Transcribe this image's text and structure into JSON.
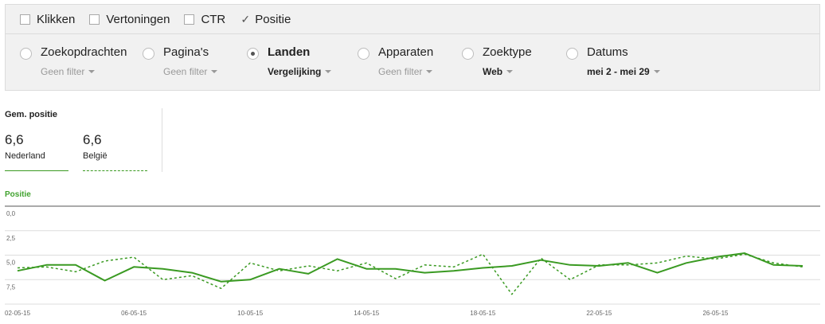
{
  "metrics": [
    {
      "label": "Klikken",
      "checked": false
    },
    {
      "label": "Vertoningen",
      "checked": false
    },
    {
      "label": "CTR",
      "checked": false
    },
    {
      "label": "Positie",
      "checked": true
    }
  ],
  "dimensions": [
    {
      "label": "Zoekopdrachten",
      "filter": "Geen filter",
      "selected": false,
      "active_filter": false
    },
    {
      "label": "Pagina's",
      "filter": "Geen filter",
      "selected": false,
      "active_filter": false
    },
    {
      "label": "Landen",
      "filter": "Vergelijking",
      "selected": true,
      "active_filter": true
    },
    {
      "label": "Apparaten",
      "filter": "Geen filter",
      "selected": false,
      "active_filter": false
    },
    {
      "label": "Zoektype",
      "filter": "Web",
      "selected": false,
      "active_filter": true
    },
    {
      "label": "Datums",
      "filter": "mei 2 - mei 29",
      "selected": false,
      "active_filter": true
    }
  ],
  "scorecards": {
    "title": "Gem. positie",
    "items": [
      {
        "value": "6,6",
        "label": "Nederland",
        "line_style": "solid"
      },
      {
        "value": "6,6",
        "label": "België",
        "line_style": "dashed"
      }
    ]
  },
  "colors": {
    "series": "#3a9a22",
    "grid": "#dddddd",
    "axis": "#555555"
  },
  "chart_data": {
    "type": "line",
    "title": "Positie",
    "y_reversed": true,
    "ylim": [
      0,
      10
    ],
    "yticks": [
      "0,0",
      "2,5",
      "5,0",
      "7,5"
    ],
    "ytick_values": [
      0,
      2.5,
      5,
      7.5
    ],
    "x": [
      "02-05-15",
      "03-05-15",
      "04-05-15",
      "05-05-15",
      "06-05-15",
      "07-05-15",
      "08-05-15",
      "09-05-15",
      "10-05-15",
      "11-05-15",
      "12-05-15",
      "13-05-15",
      "14-05-15",
      "15-05-15",
      "16-05-15",
      "17-05-15",
      "18-05-15",
      "19-05-15",
      "20-05-15",
      "21-05-15",
      "22-05-15",
      "23-05-15",
      "24-05-15",
      "25-05-15",
      "26-05-15",
      "27-05-15",
      "28-05-15",
      "29-05-15"
    ],
    "xtick_labels": [
      "02-05-15",
      "06-05-15",
      "10-05-15",
      "14-05-15",
      "18-05-15",
      "22-05-15",
      "26-05-15"
    ],
    "xtick_indices": [
      0,
      4,
      8,
      12,
      16,
      20,
      24
    ],
    "series": [
      {
        "name": "Nederland",
        "style": "solid",
        "values": [
          6.6,
          6.0,
          6.0,
          7.6,
          6.2,
          6.4,
          6.8,
          7.7,
          7.5,
          6.4,
          6.9,
          5.4,
          6.4,
          6.4,
          6.8,
          6.6,
          6.3,
          6.1,
          5.5,
          6.0,
          6.1,
          5.8,
          6.8,
          5.8,
          5.2,
          4.8,
          6.0,
          6.1
        ]
      },
      {
        "name": "België",
        "style": "dashed",
        "values": [
          6.3,
          6.2,
          6.7,
          5.6,
          5.2,
          7.5,
          7.1,
          8.4,
          5.8,
          6.6,
          6.1,
          6.6,
          5.8,
          7.4,
          6.0,
          6.2,
          4.9,
          9.0,
          5.3,
          7.5,
          6.0,
          6.0,
          5.8,
          5.1,
          5.4,
          4.9,
          5.8,
          6.2
        ]
      }
    ]
  }
}
